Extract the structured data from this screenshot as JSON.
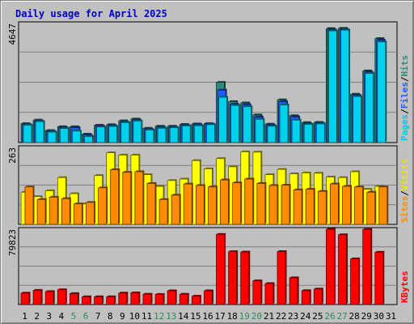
{
  "chart_data": {
    "type": "bar",
    "title": "Daily usage for April 2025",
    "days": [
      "1",
      "2",
      "3",
      "4",
      "5",
      "6",
      "7",
      "8",
      "9",
      "10",
      "11",
      "12",
      "13",
      "14",
      "15",
      "16",
      "17",
      "18",
      "19",
      "20",
      "21",
      "22",
      "23",
      "24",
      "25",
      "26",
      "27",
      "28",
      "29",
      "30",
      "31"
    ],
    "weekend_days": [
      "5",
      "6",
      "12",
      "13",
      "19",
      "20",
      "26",
      "27"
    ],
    "grid": true,
    "panels": [
      {
        "id": "hits",
        "max_label": "4647",
        "ylim": [
          0,
          4647
        ],
        "series": [
          {
            "name": "Hits",
            "color": "#2e8b7a",
            "values": [
              740,
              880,
              470,
              620,
              620,
              330,
              680,
              700,
              850,
              920,
              560,
              640,
              640,
              710,
              730,
              740,
              2350,
              1600,
              1550,
              1080,
              720,
              1670,
              1050,
              780,
              790,
              4450,
              4460,
              1890,
              2800,
              4060,
              null
            ]
          },
          {
            "name": "Files",
            "color": "#1e5cff",
            "values": [
              700,
              840,
              440,
              580,
              580,
              300,
              650,
              660,
              800,
              880,
              520,
              600,
              600,
              670,
              700,
              720,
              2050,
              1500,
              1480,
              1000,
              680,
              1600,
              1000,
              740,
              760,
              4400,
              4420,
              1850,
              2750,
              4000,
              null
            ]
          },
          {
            "name": "Pages",
            "color": "#00d2ee",
            "values": [
              680,
              820,
              410,
              550,
              450,
              240,
              610,
              630,
              780,
              840,
              490,
              560,
              580,
              650,
              660,
              700,
              1770,
              1450,
              1400,
              910,
              640,
              1470,
              880,
              710,
              730,
              4360,
              4390,
              1800,
              2700,
              3930,
              null
            ]
          }
        ],
        "legend": [
          "Pages",
          "Files",
          "Hits"
        ]
      },
      {
        "id": "visits",
        "max_label": "263",
        "ylim": [
          0,
          263
        ],
        "series": [
          {
            "name": "Visits",
            "color": "#ffff00",
            "values": [
              110,
              95,
              115,
              160,
              105,
              70,
              167,
              245,
              237,
              237,
              170,
              130,
              150,
              155,
              218,
              190,
              225,
              197,
              248,
              247,
              170,
              188,
              173,
              176,
              175,
              162,
              160,
              180,
              120,
              130,
              null
            ]
          },
          {
            "name": "Sites",
            "color": "#ff8c00",
            "values": [
              128,
              85,
              93,
              88,
              70,
              75,
              125,
              187,
              178,
              180,
              140,
              85,
              100,
              138,
              133,
              128,
              152,
              142,
              155,
              140,
              133,
              134,
              118,
              120,
              113,
              138,
              130,
              128,
              110,
              128,
              null
            ]
          }
        ],
        "legend": [
          "Sites",
          "Visits"
        ]
      },
      {
        "id": "kbytes",
        "max_label": "79823",
        "ylim": [
          0,
          79823
        ],
        "series": [
          {
            "name": "KBytes",
            "color": "#ff0000",
            "values": [
              12200,
              15100,
              13800,
              15700,
              11700,
              8300,
              8300,
              8300,
              12200,
              12500,
              11000,
              10800,
              14600,
              11000,
              8900,
              14600,
              74400,
              56100,
              55700,
              25200,
              22300,
              56200,
              28400,
              14800,
              16500,
              79800,
              74000,
              48500,
              79600,
              55500,
              null
            ]
          }
        ],
        "legend": [
          "KBytes"
        ]
      }
    ]
  }
}
